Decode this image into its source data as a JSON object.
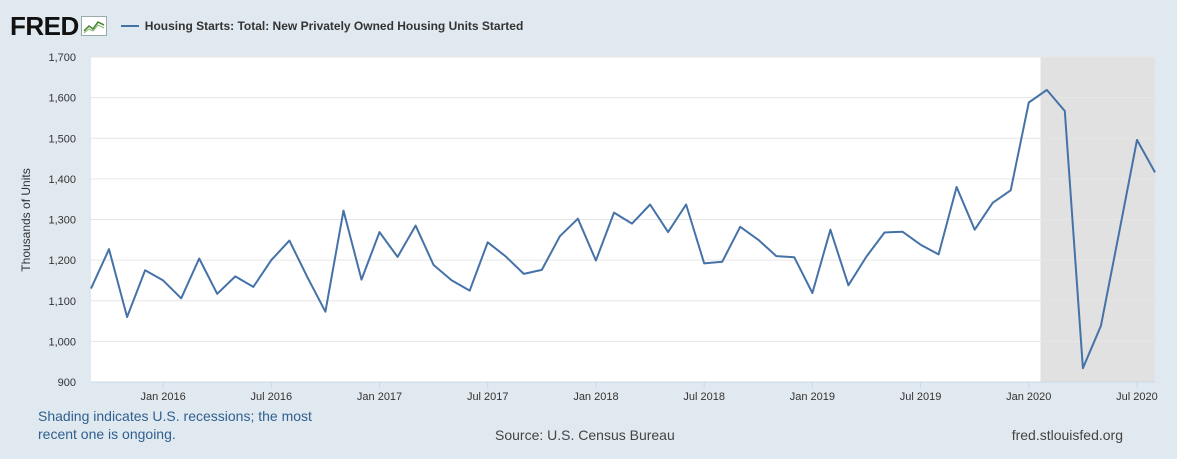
{
  "brand": "FRED",
  "foot": {
    "note": "Shading indicates U.S. recessions; the most recent one is ongoing.",
    "source": "Source: U.S. Census Bureau",
    "site": "fred.stlouisfed.org"
  },
  "colors": {
    "series": "#4572a7",
    "recession": "#e1e1e1",
    "background": "#e1e9f0"
  },
  "chart_data": {
    "type": "line",
    "title": "",
    "ylabel": "Thousands of Units",
    "ylim": [
      900,
      1700
    ],
    "yticks": [
      900,
      1000,
      1100,
      1200,
      1300,
      1400,
      1500,
      1600,
      1700
    ],
    "ytick_labels": [
      "900",
      "1,000",
      "1,100",
      "1,200",
      "1,300",
      "1,400",
      "1,500",
      "1,600",
      "1,700"
    ],
    "xlim": [
      "2015-09",
      "2020-08"
    ],
    "xticks": [
      "2016-01",
      "2016-07",
      "2017-01",
      "2017-07",
      "2018-01",
      "2018-07",
      "2019-01",
      "2019-07",
      "2020-01",
      "2020-07"
    ],
    "xtick_labels": [
      "Jan 2016",
      "Jul 2016",
      "Jan 2017",
      "Jul 2017",
      "Jan 2018",
      "Jul 2018",
      "Jan 2019",
      "Jul 2019",
      "Jan 2020",
      "Jul 2020"
    ],
    "grid": true,
    "legend": "top-left",
    "recession": {
      "start": "2020-02",
      "end": "2020-08"
    },
    "series": [
      {
        "name": "Housing Starts: Total: New Privately Owned Housing Units Started",
        "x": [
          "2015-09",
          "2015-10",
          "2015-11",
          "2015-12",
          "2016-01",
          "2016-02",
          "2016-03",
          "2016-04",
          "2016-05",
          "2016-06",
          "2016-07",
          "2016-08",
          "2016-09",
          "2016-10",
          "2016-11",
          "2016-12",
          "2017-01",
          "2017-02",
          "2017-03",
          "2017-04",
          "2017-05",
          "2017-06",
          "2017-07",
          "2017-08",
          "2017-09",
          "2017-10",
          "2017-11",
          "2017-12",
          "2018-01",
          "2018-02",
          "2018-03",
          "2018-04",
          "2018-05",
          "2018-06",
          "2018-07",
          "2018-08",
          "2018-09",
          "2018-10",
          "2018-11",
          "2018-12",
          "2019-01",
          "2019-02",
          "2019-03",
          "2019-04",
          "2019-05",
          "2019-06",
          "2019-07",
          "2019-08",
          "2019-09",
          "2019-10",
          "2019-11",
          "2019-12",
          "2020-01",
          "2020-02",
          "2020-03",
          "2020-04",
          "2020-05",
          "2020-06",
          "2020-07",
          "2020-08"
        ],
        "values": [
          1130,
          1227,
          1060,
          1175,
          1150,
          1106,
          1204,
          1117,
          1160,
          1134,
          1200,
          1248,
          1158,
          1073,
          1322,
          1152,
          1269,
          1208,
          1285,
          1188,
          1150,
          1125,
          1244,
          1209,
          1166,
          1176,
          1259,
          1302,
          1199,
          1317,
          1290,
          1337,
          1269,
          1337,
          1192,
          1196,
          1282,
          1250,
          1210,
          1207,
          1119,
          1275,
          1138,
          1209,
          1268,
          1270,
          1238,
          1214,
          1380,
          1275,
          1341,
          1372,
          1588,
          1619,
          1567,
          934,
          1038,
          1265,
          1496,
          1416
        ]
      }
    ]
  }
}
